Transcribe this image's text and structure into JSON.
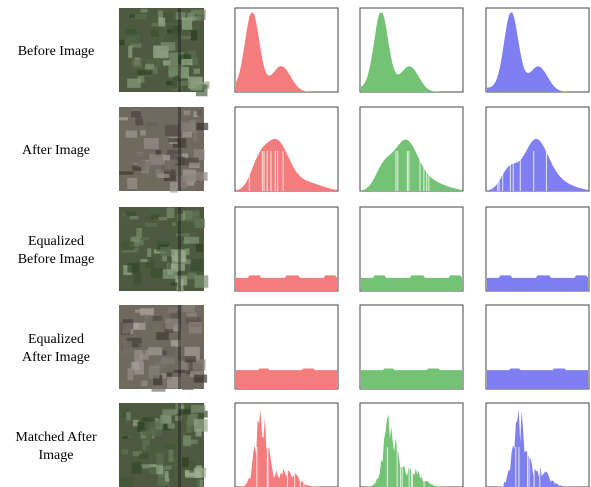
{
  "rows": [
    {
      "label": [
        "Before Image"
      ]
    },
    {
      "label": [
        "After Image"
      ]
    },
    {
      "label": [
        "Equalized",
        "Before Image"
      ]
    },
    {
      "label": [
        "Equalized",
        "After Image"
      ]
    },
    {
      "label": [
        "Matched After",
        "Image"
      ]
    }
  ]
}
